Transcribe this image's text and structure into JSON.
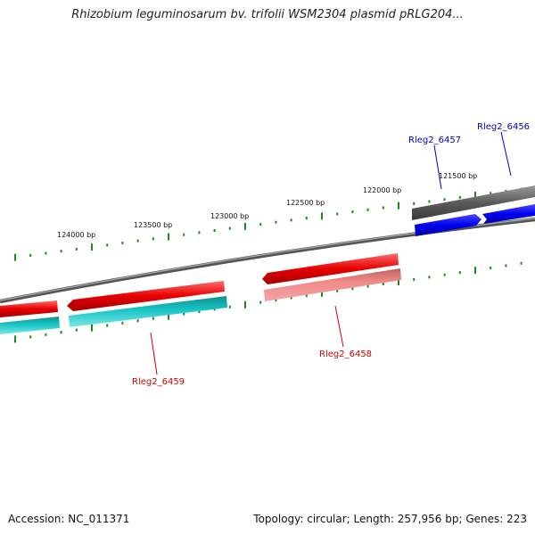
{
  "title": "Rhizobium leguminosarum bv. trifolii WSM2304 plasmid pRLG204...",
  "footer": {
    "accession": "Accession: NC_011371",
    "summary": "Topology: circular; Length: 257,956 bp; Genes: 223"
  },
  "bp_labels": [
    "124000 bp",
    "123500 bp",
    "123000 bp",
    "122500 bp",
    "122000 bp",
    "121500 bp"
  ],
  "gene_labels": {
    "g6457": "Rleg2_6457",
    "g6456": "Rleg2_6456",
    "g6458": "Rleg2_6458",
    "g6459": "Rleg2_6459"
  },
  "colors": {
    "red": "#e60000",
    "cyan": "#19c6c6",
    "blue": "#0000ee",
    "gray": "#666666",
    "ticks": "#1a8a1a"
  }
}
